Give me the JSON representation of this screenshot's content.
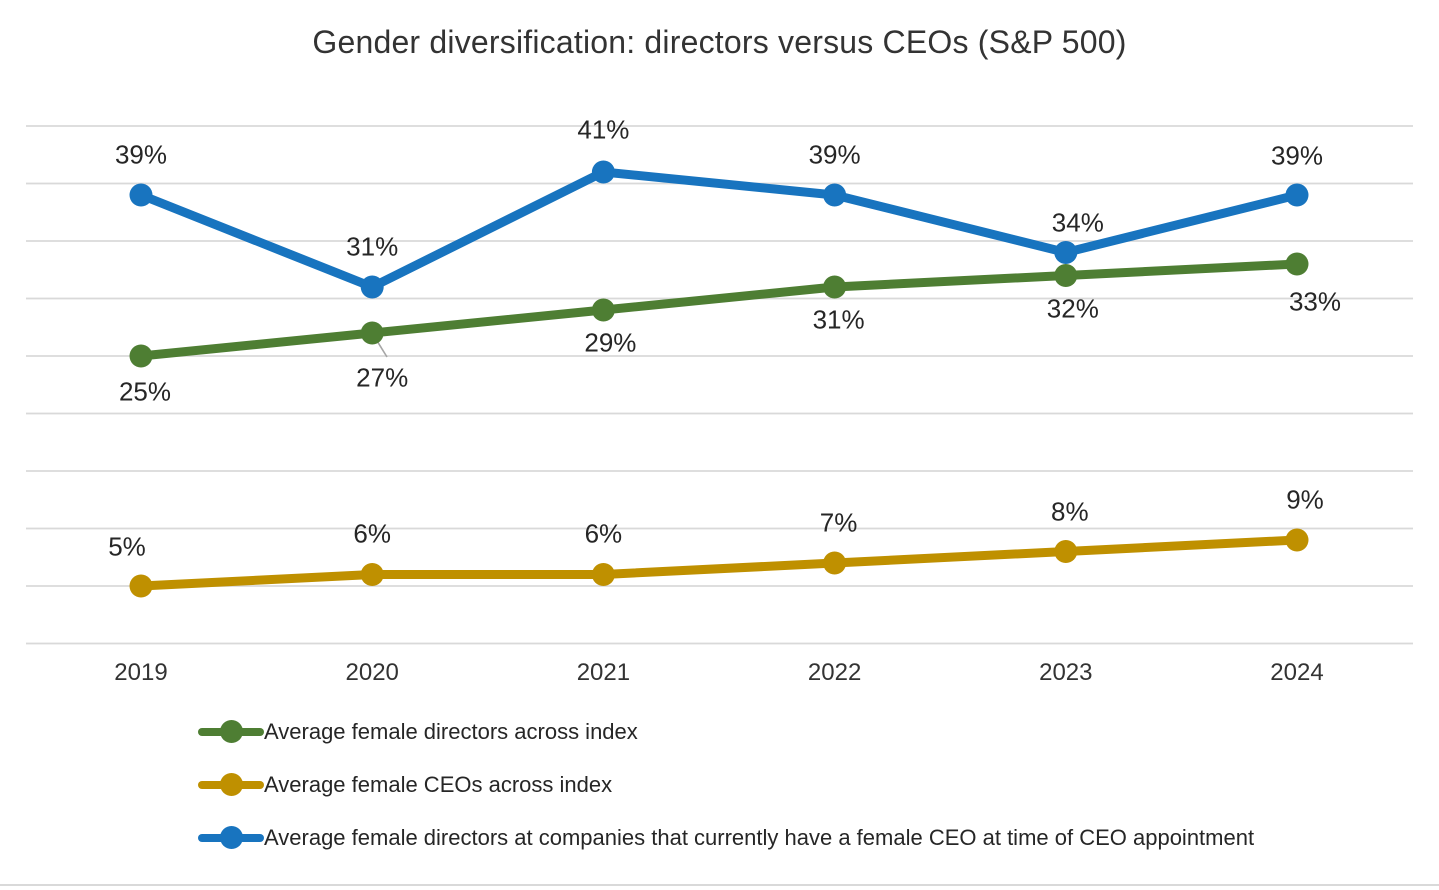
{
  "chart_data": {
    "type": "line",
    "title": "Gender diversification: directors versus CEOs (S&P 500)",
    "categories": [
      "2019",
      "2020",
      "2021",
      "2022",
      "2023",
      "2024"
    ],
    "y_unit": "percent",
    "ylim": [
      0,
      45
    ],
    "y_gridlines": [
      0,
      5,
      10,
      15,
      20,
      25,
      30,
      35,
      40,
      45
    ],
    "grid": "horizontal-only",
    "y_axis_labels_visible": false,
    "legend_position": "bottom-left",
    "colors": {
      "gridline": "#D9D9D9",
      "text": "#262626",
      "leader_line": "#A6A6A6"
    },
    "series": [
      {
        "key": "avg-female-directors-index",
        "name": "Average female directors across index",
        "color": "#4E7E33",
        "values": [
          25,
          27,
          29,
          31,
          32,
          33
        ],
        "data_labels": [
          "25%",
          "27%",
          "29%",
          "31%",
          "32%",
          "33%"
        ],
        "label_position": "below"
      },
      {
        "key": "avg-female-ceos-index",
        "name": "Average female CEOs across index",
        "color": "#BF9000",
        "values": [
          5,
          6,
          6,
          7,
          8,
          9
        ],
        "data_labels": [
          "5%",
          "6%",
          "6%",
          "7%",
          "8%",
          "9%"
        ],
        "label_position": "above"
      },
      {
        "key": "avg-female-directors-at-female-ceo-companies",
        "name": "Average female directors at companies that currently have a female CEO at time of CEO appointment",
        "color": "#1874BF",
        "values": [
          39,
          31,
          41,
          39,
          34,
          39
        ],
        "data_labels": [
          "39%",
          "31%",
          "41%",
          "39%",
          "34%",
          "39%"
        ],
        "label_position": "above"
      }
    ]
  }
}
